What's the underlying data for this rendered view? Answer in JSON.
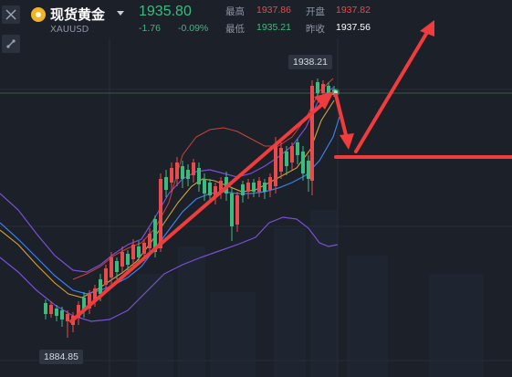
{
  "header": {
    "instrument_name": "现货黄金",
    "symbol": "XAUUSD",
    "price": "1935.80",
    "change": "-1.76",
    "change_pct": "-0.09%",
    "stats": {
      "high_label": "最高",
      "high": "1937.86",
      "open_label": "开盘",
      "open": "1937.82",
      "low_label": "最低",
      "low": "1935.21",
      "prev_close_label": "昨收",
      "prev_close": "1937.56"
    }
  },
  "chart": {
    "high_callout": "1938.21",
    "low_callout": "1884.85"
  },
  "colors": {
    "background": "#1b2029",
    "up": "#e84b4b",
    "down": "#3dbb7d",
    "arrow": "#f03c3c",
    "band_outer": "#7b4fd6",
    "band_mid": "#3f7ee8",
    "ma": "#d6a13a"
  },
  "icons": [
    "close-icon",
    "draw-tool-icon",
    "gold-coin-icon",
    "dropdown-caret-icon"
  ]
}
